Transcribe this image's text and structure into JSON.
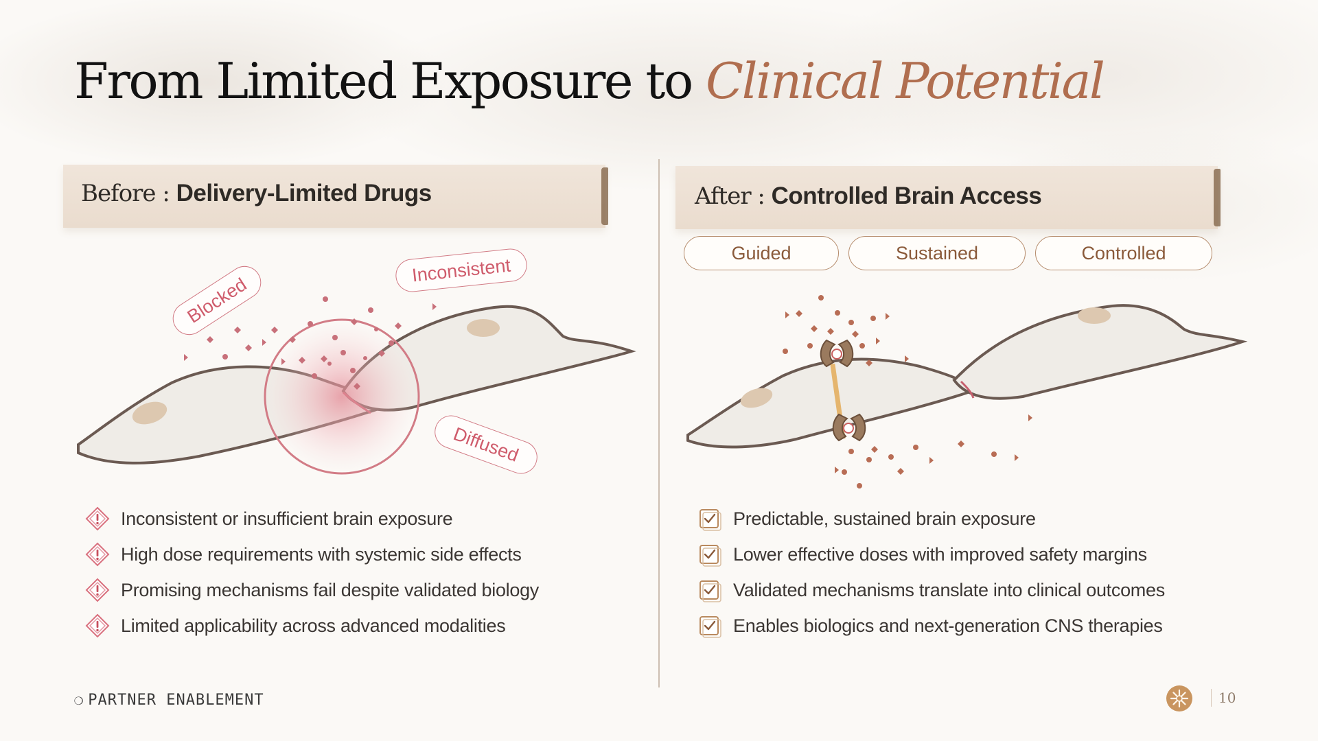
{
  "slide": {
    "title_plain": "From Limited Exposure to ",
    "title_accent": "Clinical Potential",
    "page_number": "10",
    "footer": "PARTNER ENABLEMENT"
  },
  "before": {
    "prefix": "Before : ",
    "heading": "Delivery-Limited Drugs",
    "tags": [
      "Blocked",
      "Inconsistent",
      "Diffused"
    ],
    "items": [
      "Inconsistent or insufficient brain exposure",
      "High dose requirements with systemic side effects",
      "Promising mechanisms fail despite validated biology",
      "Limited applicability across advanced modalities"
    ]
  },
  "after": {
    "prefix": "After : ",
    "heading": "Controlled Brain Access",
    "pills": [
      "Guided",
      "Sustained",
      "Controlled"
    ],
    "items": [
      "Predictable, sustained brain exposure",
      "Lower effective doses with improved safety margins",
      "Validated mechanisms translate into clinical outcomes",
      "Enables biologics and next-generation CNS therapies"
    ]
  },
  "colors": {
    "accent": "#b06e4f",
    "warning": "#d9707e",
    "check": "#b98a5f"
  },
  "icons": {
    "before_items": "warning-diamond-icon",
    "after_items": "checkbox-icon",
    "footer": "half-circle-icon",
    "logo": "sun-burst-icon"
  }
}
